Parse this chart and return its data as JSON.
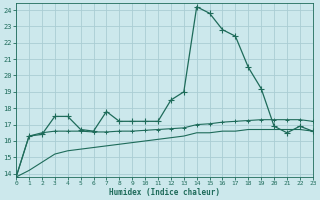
{
  "xlabel": "Humidex (Indice chaleur)",
  "bg_color": "#cce8ec",
  "grid_color": "#aacdd4",
  "line_color": "#1e6b5a",
  "x_values": [
    0,
    1,
    2,
    3,
    4,
    5,
    6,
    7,
    8,
    9,
    10,
    11,
    12,
    13,
    14,
    15,
    16,
    17,
    18,
    19,
    20,
    21,
    22,
    23
  ],
  "line1_y": [
    13.8,
    16.3,
    16.4,
    17.5,
    17.5,
    16.7,
    16.6,
    17.8,
    17.2,
    17.2,
    17.2,
    17.2,
    18.5,
    19.0,
    24.2,
    23.8,
    22.8,
    22.4,
    20.5,
    19.2,
    16.9,
    16.5,
    16.9,
    16.6
  ],
  "line2_y": [
    13.8,
    16.3,
    16.5,
    16.6,
    16.6,
    16.6,
    16.55,
    16.55,
    16.6,
    16.6,
    16.65,
    16.7,
    16.75,
    16.8,
    17.0,
    17.05,
    17.15,
    17.2,
    17.25,
    17.3,
    17.3,
    17.3,
    17.3,
    17.2
  ],
  "line3_y": [
    13.8,
    14.2,
    14.7,
    15.2,
    15.4,
    15.5,
    15.6,
    15.7,
    15.8,
    15.9,
    16.0,
    16.1,
    16.2,
    16.3,
    16.5,
    16.5,
    16.6,
    16.6,
    16.7,
    16.7,
    16.7,
    16.7,
    16.7,
    16.6
  ],
  "ylim": [
    13.8,
    24.4
  ],
  "yticks": [
    14,
    15,
    16,
    17,
    18,
    19,
    20,
    21,
    22,
    23,
    24
  ],
  "xlim": [
    0,
    23
  ],
  "xticks": [
    0,
    1,
    2,
    3,
    4,
    5,
    6,
    7,
    8,
    9,
    10,
    11,
    12,
    13,
    14,
    15,
    16,
    17,
    18,
    19,
    20,
    21,
    22,
    23
  ]
}
